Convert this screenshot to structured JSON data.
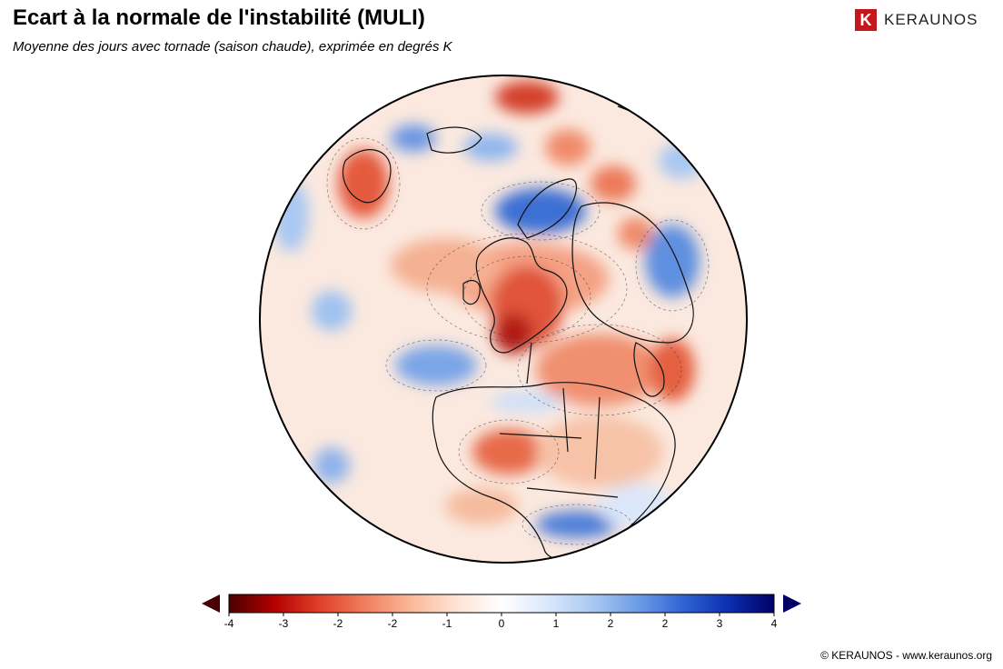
{
  "title": "Ecart à la normale de l'instabilité (MULI)",
  "subtitle": "Moyenne des jours avec tornade (saison chaude), exprimée en degrés K",
  "brand": {
    "name": "KERAUNOS",
    "mark": "K",
    "color": "#c4161c"
  },
  "footer": "© KERAUNOS - www.keraunos.org",
  "colorbar": {
    "tick_labels": [
      "-4",
      "-3",
      "-2",
      "-2",
      "-1",
      "0",
      "1",
      "2",
      "2",
      "3",
      "4"
    ],
    "colors": [
      "#4a0000",
      "#b30000",
      "#e0402a",
      "#f07f5e",
      "#f9b898",
      "#fde3d4",
      "#ffffff",
      "#dbe8fb",
      "#a9c9f2",
      "#6d9de6",
      "#3164d4",
      "#0b2fb0",
      "#000066"
    ],
    "low_arrow_color": "#4a0000",
    "high_arrow_color": "#000066"
  },
  "map": {
    "projection": "orthographic",
    "region": "Europe / Africa / North Atlantic"
  }
}
